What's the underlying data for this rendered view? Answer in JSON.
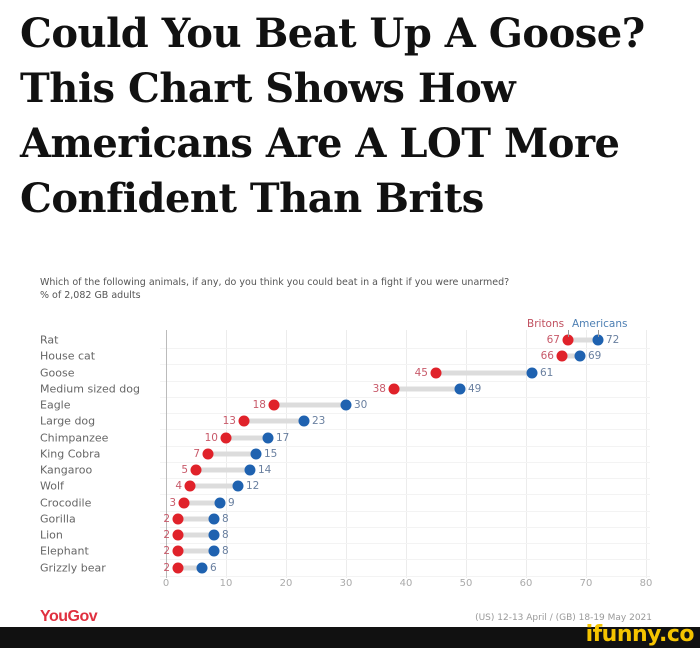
{
  "headline": {
    "lines": [
      "Could You Beat Up A Goose?",
      "This Chart Shows How",
      "Americans Are A LOT More",
      "Confident Than Brits"
    ]
  },
  "chart": {
    "question": "Which of the following animals, if any, do you think you could beat in a fight if you were unarmed?",
    "subtitle": "% of 2,082 GB adults",
    "legend": {
      "britons": "Britons",
      "americans": "Americans"
    },
    "colors": {
      "britons": "#e0222a",
      "americans": "#1f62b0",
      "connector": "#dcdcdc"
    },
    "source_brand": "YouGov",
    "source_dates": "(US) 12-13 April / (GB) 18-19 May 2021"
  },
  "watermark": "ifunny.co",
  "chart_data": {
    "type": "dumbbell",
    "title": "Which of the following animals, if any, do you think you could beat in a fight if you were unarmed?",
    "subtitle": "% of 2,082 GB adults",
    "xlabel": "",
    "ylabel": "",
    "xlim": [
      0,
      80
    ],
    "xticks": [
      0,
      10,
      20,
      30,
      40,
      50,
      60,
      70,
      80
    ],
    "grid": true,
    "legend_position": "top-right",
    "categories": [
      "Rat",
      "House cat",
      "Goose",
      "Medium sized dog",
      "Eagle",
      "Large dog",
      "Chimpanzee",
      "King Cobra",
      "Kangaroo",
      "Wolf",
      "Crocodile",
      "Gorilla",
      "Lion",
      "Elephant",
      "Grizzly bear"
    ],
    "series": [
      {
        "name": "Britons",
        "color": "#e0222a",
        "values": [
          67,
          66,
          45,
          38,
          18,
          13,
          10,
          7,
          5,
          4,
          3,
          2,
          2,
          2,
          2
        ]
      },
      {
        "name": "Americans",
        "color": "#1f62b0",
        "values": [
          72,
          69,
          61,
          49,
          30,
          23,
          17,
          15,
          14,
          12,
          9,
          8,
          8,
          8,
          6
        ]
      }
    ],
    "source": "YouGov, (US) 12-13 April / (GB) 18-19 May 2021"
  }
}
